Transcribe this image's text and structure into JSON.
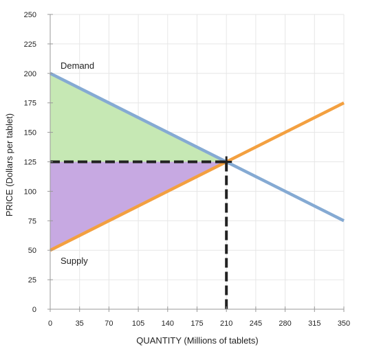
{
  "chart_data": {
    "type": "line",
    "xlabel": "QUANTITY (Millions of tablets)",
    "ylabel": "PRICE (Dollars per tablet)",
    "xlim": [
      0,
      350
    ],
    "ylim": [
      0,
      250
    ],
    "xticks": [
      0,
      35,
      70,
      105,
      140,
      175,
      210,
      245,
      280,
      315,
      350
    ],
    "yticks": [
      0,
      25,
      50,
      75,
      100,
      125,
      150,
      175,
      200,
      225,
      250
    ],
    "grid": true,
    "series": [
      {
        "name": "Demand",
        "x": [
          0,
          350
        ],
        "y": [
          200,
          75
        ],
        "color": "#85aad3"
      },
      {
        "name": "Supply",
        "x": [
          0,
          350
        ],
        "y": [
          50,
          175
        ],
        "color": "#f3a040"
      }
    ],
    "equilibrium": {
      "x": 210,
      "y": 125
    },
    "consumer_surplus_color": "#c6e8b4",
    "producer_surplus_color": "#c7a9e2",
    "dashed_line_color": "#222222"
  }
}
